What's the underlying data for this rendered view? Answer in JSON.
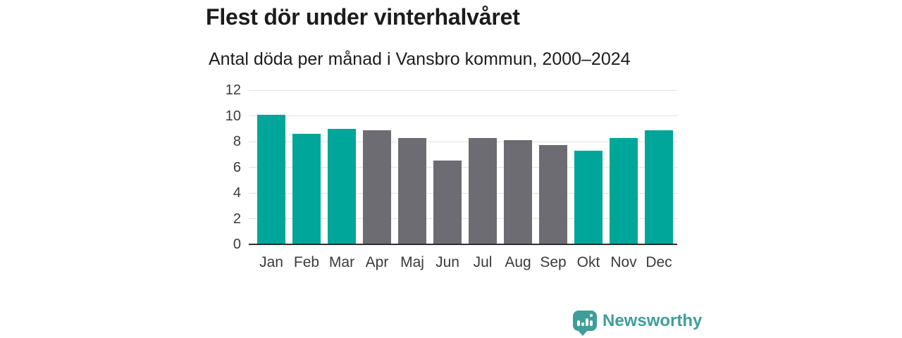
{
  "header": {
    "title": "Flest dör under vinterhalvåret",
    "subtitle": "Antal döda per månad i Vansbro kommun, 2000–2024"
  },
  "chart_data": {
    "type": "bar",
    "title": "Flest dör under vinterhalvåret",
    "subtitle": "Antal döda per månad i Vansbro kommun, 2000–2024",
    "categories": [
      "Jan",
      "Feb",
      "Mar",
      "Apr",
      "Maj",
      "Jun",
      "Jul",
      "Aug",
      "Sep",
      "Okt",
      "Nov",
      "Dec"
    ],
    "values": [
      10.1,
      8.6,
      9.0,
      8.9,
      8.3,
      6.5,
      8.3,
      8.1,
      7.7,
      7.3,
      8.3,
      8.9
    ],
    "bar_groups": [
      "winter",
      "winter",
      "winter",
      "summer",
      "summer",
      "summer",
      "summer",
      "summer",
      "summer",
      "winter",
      "winter",
      "winter"
    ],
    "group_colors": {
      "winter": "#00a69a",
      "summer": "#6c6c72"
    },
    "xlabel": "",
    "ylabel": "",
    "ylim": [
      0,
      12
    ],
    "yticks": [
      0,
      2,
      4,
      6,
      8,
      10,
      12
    ],
    "grid": true,
    "gridline_color": "#e2e2e2",
    "axis_line_color": "#2e2e2e",
    "legend": false
  },
  "footer": {
    "brand": "Newsworthy",
    "brand_color": "#3f9e99",
    "brand_icon": "speech-bubble-bar-chart"
  }
}
